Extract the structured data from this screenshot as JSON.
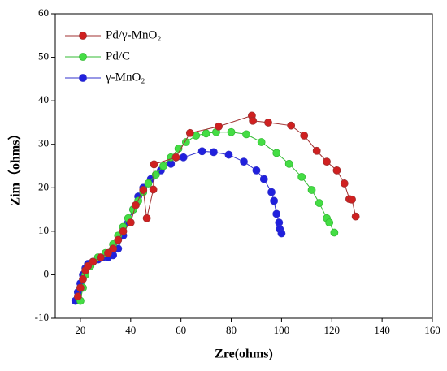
{
  "chart_data": {
    "type": "line",
    "xlabel": "Zre(ohms)",
    "ylabel": "Zim（ohms）",
    "xlim": [
      10,
      160
    ],
    "xticks": [
      20,
      40,
      60,
      80,
      100,
      120,
      140,
      160
    ],
    "ylim": [
      -10,
      60
    ],
    "yticks": [
      -10,
      0,
      10,
      20,
      30,
      40,
      50,
      60
    ],
    "legend": "upper left",
    "series": [
      {
        "name": "Pd/γ-MnO₂",
        "color": "#d02020",
        "line_color": "#a03030",
        "x": [
          19,
          20,
          21,
          22,
          23,
          25,
          28,
          31,
          33,
          35,
          37,
          40,
          42,
          45,
          46.4,
          49,
          49.3,
          58,
          63.6,
          75,
          88.2,
          88.6,
          94.7,
          103.8,
          109,
          114,
          118,
          122,
          125,
          127,
          128,
          129.5
        ],
        "values": [
          -5,
          -3,
          -1,
          1,
          2,
          3,
          4,
          5,
          6,
          8,
          10,
          12,
          16,
          19.5,
          13,
          19.6,
          25.4,
          27,
          32.6,
          34.1,
          36.6,
          35.4,
          35,
          34.3,
          32,
          28.5,
          26,
          24,
          21,
          17.4,
          17.3,
          13.4
        ]
      },
      {
        "name": "Pd/C",
        "color": "#44dd44",
        "line_color": "#33bb33",
        "x": [
          20,
          21,
          22,
          24,
          27,
          30,
          33,
          35,
          37,
          39,
          41,
          43,
          45,
          47,
          50,
          53,
          56,
          59,
          62,
          66,
          70,
          74,
          80,
          86,
          92,
          98,
          103,
          108,
          112,
          115,
          118,
          119,
          121
        ],
        "values": [
          -6,
          -3,
          0,
          2,
          4,
          5,
          7,
          9,
          11,
          13,
          15,
          17,
          19,
          21,
          23,
          25,
          27,
          29,
          30.5,
          32,
          32.5,
          32.8,
          32.8,
          32.3,
          30.5,
          28,
          25.5,
          22.5,
          19.5,
          16.5,
          13,
          12,
          9.7
        ]
      },
      {
        "name": "γ-MnO₂",
        "color": "#2020dd",
        "line_color": "#3030cc",
        "x": [
          18,
          19,
          20,
          21,
          22,
          23,
          25,
          27,
          29,
          31,
          33,
          35,
          37,
          39,
          41,
          43,
          45,
          48,
          52,
          56,
          61,
          68.4,
          73,
          79,
          85,
          90,
          93,
          96,
          97,
          98,
          99,
          99.3,
          100
        ],
        "values": [
          -6,
          -4,
          -2,
          0,
          1.5,
          2.5,
          3,
          3.5,
          4,
          4,
          4.5,
          6,
          9,
          12,
          15,
          18,
          20,
          22,
          24,
          25.5,
          27,
          28.4,
          28.2,
          27.6,
          26,
          24,
          22,
          19,
          17,
          14,
          12,
          10.5,
          9.5
        ]
      }
    ]
  }
}
